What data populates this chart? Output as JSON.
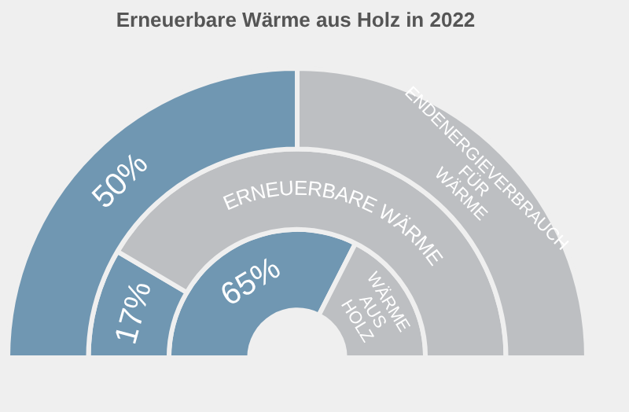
{
  "chart_data": {
    "type": "donut",
    "title": "Erneuerbare Wärme aus Holz in 2022",
    "categories": [
      null,
      null
    ],
    "series": [
      {
        "name": "ENDENERGIEVERBRAUCH FÜR WÄRME",
        "values": [
          50,
          50
        ],
        "colors": [
          "#7097b2",
          "#bdbfc2"
        ],
        "value_labels": [
          "50%",
          null
        ]
      },
      {
        "name": "ERNEUERBARE WÄRME",
        "values": [
          17,
          83
        ],
        "colors": [
          "#7097b2",
          "#bdbfc2"
        ],
        "value_labels": [
          "17%",
          null
        ]
      },
      {
        "name": "WÄRME AUS HOLZ",
        "values": [
          65,
          35
        ],
        "colors": [
          "#7097b2",
          "#bdbfc2"
        ],
        "value_labels": [
          "65%",
          null
        ]
      }
    ]
  }
}
